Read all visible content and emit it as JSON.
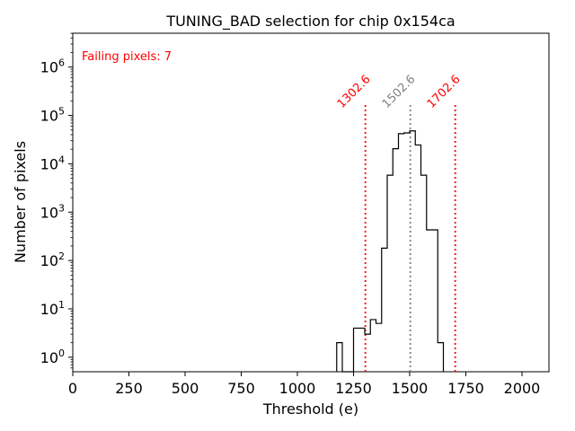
{
  "chart_data": {
    "type": "histogram",
    "title": "TUNING_BAD selection for chip 0x154ca",
    "xlabel": "Threshold (e)",
    "ylabel": "Number of pixels",
    "xlim": [
      0,
      2120
    ],
    "ylim_log10": [
      -0.3,
      6.7
    ],
    "yscale": "log",
    "x_ticks": [
      0,
      250,
      500,
      750,
      1000,
      1250,
      1500,
      1750,
      2000
    ],
    "x_tick_labels": [
      "0",
      "250",
      "500",
      "750",
      "1000",
      "1250",
      "1500",
      "1750",
      "2000"
    ],
    "y_ticks_log10": [
      0,
      1,
      2,
      3,
      4,
      5,
      6
    ],
    "annotation": "Failing pixels: 7",
    "annotation_color": "#ff0000",
    "histogram_color": "#000000",
    "bins": [
      {
        "x0": 1175,
        "x1": 1200,
        "count": 2
      },
      {
        "x0": 1200,
        "x1": 1225,
        "count": 0
      },
      {
        "x0": 1225,
        "x1": 1250,
        "count": 0
      },
      {
        "x0": 1250,
        "x1": 1275,
        "count": 4
      },
      {
        "x0": 1275,
        "x1": 1300,
        "count": 4
      },
      {
        "x0": 1300,
        "x1": 1325,
        "count": 3
      },
      {
        "x0": 1325,
        "x1": 1350,
        "count": 6
      },
      {
        "x0": 1350,
        "x1": 1375,
        "count": 5
      },
      {
        "x0": 1375,
        "x1": 1400,
        "count": 180
      },
      {
        "x0": 1400,
        "x1": 1425,
        "count": 5800
      },
      {
        "x0": 1425,
        "x1": 1450,
        "count": 20500
      },
      {
        "x0": 1450,
        "x1": 1475,
        "count": 42000
      },
      {
        "x0": 1475,
        "x1": 1500,
        "count": 43500
      },
      {
        "x0": 1500,
        "x1": 1525,
        "count": 48000
      },
      {
        "x0": 1525,
        "x1": 1550,
        "count": 24500
      },
      {
        "x0": 1550,
        "x1": 1575,
        "count": 5800
      },
      {
        "x0": 1575,
        "x1": 1600,
        "count": 430
      },
      {
        "x0": 1600,
        "x1": 1625,
        "count": 430
      },
      {
        "x0": 1625,
        "x1": 1650,
        "count": 2
      }
    ],
    "vlines": [
      {
        "x": 1302.6,
        "label": "1302.6",
        "color": "#ff0000",
        "top": 180000
      },
      {
        "x": 1502.6,
        "label": "1502.6",
        "color": "#808080",
        "top": 180000
      },
      {
        "x": 1702.6,
        "label": "1702.6",
        "color": "#ff0000",
        "top": 180000
      }
    ]
  }
}
